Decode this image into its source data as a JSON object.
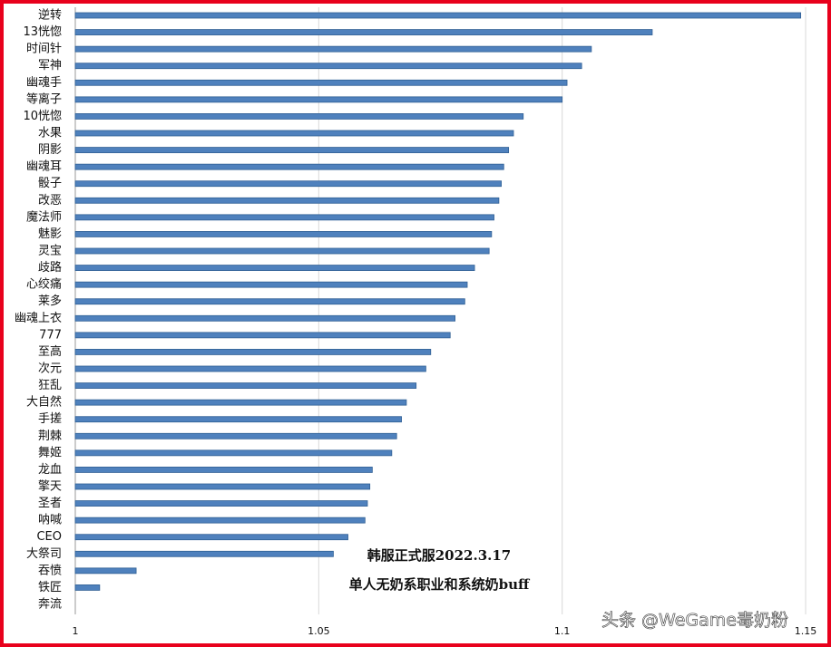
{
  "chart_data": {
    "type": "barh",
    "categories": [
      "逆转",
      "13恍惚",
      "时间针",
      "军神",
      "幽魂手",
      "等离子",
      "10恍惚",
      "水果",
      "阴影",
      "幽魂耳",
      "骰子",
      "改恶",
      "魔法师",
      "魅影",
      "灵宝",
      "歧路",
      "心绞痛",
      "莱多",
      "幽魂上衣",
      "777",
      "至高",
      "次元",
      "狂乱",
      "大自然",
      "手搓",
      "荆棘",
      "舞姬",
      "龙血",
      "擎天",
      "圣者",
      "呐喊",
      "CEO",
      "大祭司",
      "吞愤",
      "铁匠",
      "奔流"
    ],
    "values": [
      1.149,
      1.1185,
      1.106,
      1.104,
      1.101,
      1.1,
      1.092,
      1.09,
      1.089,
      1.088,
      1.0875,
      1.087,
      1.086,
      1.0855,
      1.085,
      1.082,
      1.0805,
      1.08,
      1.078,
      1.077,
      1.073,
      1.072,
      1.07,
      1.068,
      1.067,
      1.066,
      1.065,
      1.061,
      1.0605,
      1.06,
      1.0595,
      1.056,
      1.053,
      1.0125,
      1.005,
      1.0
    ],
    "color": "#4f81bd",
    "xlim": [
      1,
      1.15
    ],
    "xticks": [
      1,
      1.05,
      1.1,
      1.15
    ],
    "grid": true,
    "annotations": [
      "韩服正式服2022.3.17",
      "单人无奶系职业和系统奶buff"
    ],
    "watermark": "头条 @WeGame毒奶粉"
  }
}
